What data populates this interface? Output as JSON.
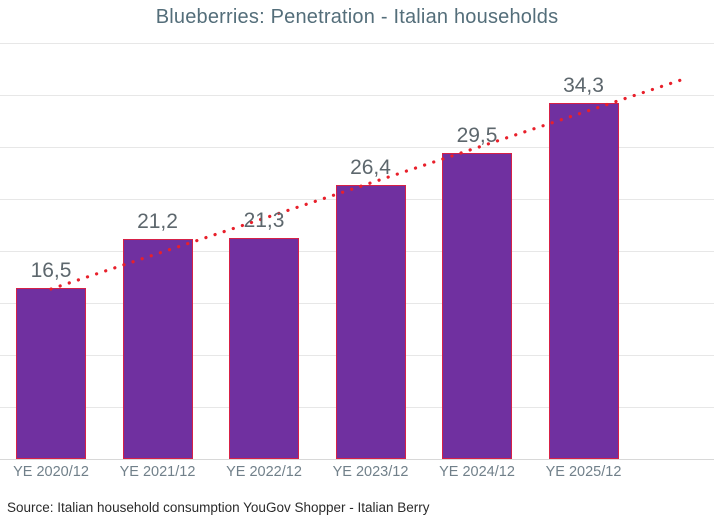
{
  "chart_data": {
    "type": "bar",
    "title": "Blueberries: Penetration - Italian households",
    "categories": [
      "YE 2020/12",
      "YE 2021/12",
      "YE 2022/12",
      "YE 2023/12",
      "YE 2024/12",
      "YE 2025/12"
    ],
    "values": [
      16.5,
      21.2,
      21.3,
      26.4,
      29.5,
      34.3
    ],
    "value_labels": [
      "16,5",
      "21,2",
      "21,3",
      "26,4",
      "29,5",
      "34,3"
    ],
    "xlabel": "",
    "ylabel": "",
    "ylim": [
      0,
      40
    ],
    "gridline_interval": 5,
    "grid": true,
    "y_tick_labels_visible": false,
    "legend_position": "none",
    "trendline": {
      "type": "linear",
      "style": "dotted",
      "color": "#e8202b",
      "extends_beyond_last_bar": true
    },
    "colors": {
      "bar_fill": "#7030a0",
      "bar_border": "#d62147",
      "trendline": "#e8202b",
      "title_text": "#546e7a",
      "value_label_text": "#5d676d",
      "axis_label_text": "#71808a",
      "gridline": "#e7e7e7",
      "source_text": "#2b2b2b"
    },
    "source": "Source: Italian household consumption YouGov Shopper - Italian Berry"
  }
}
